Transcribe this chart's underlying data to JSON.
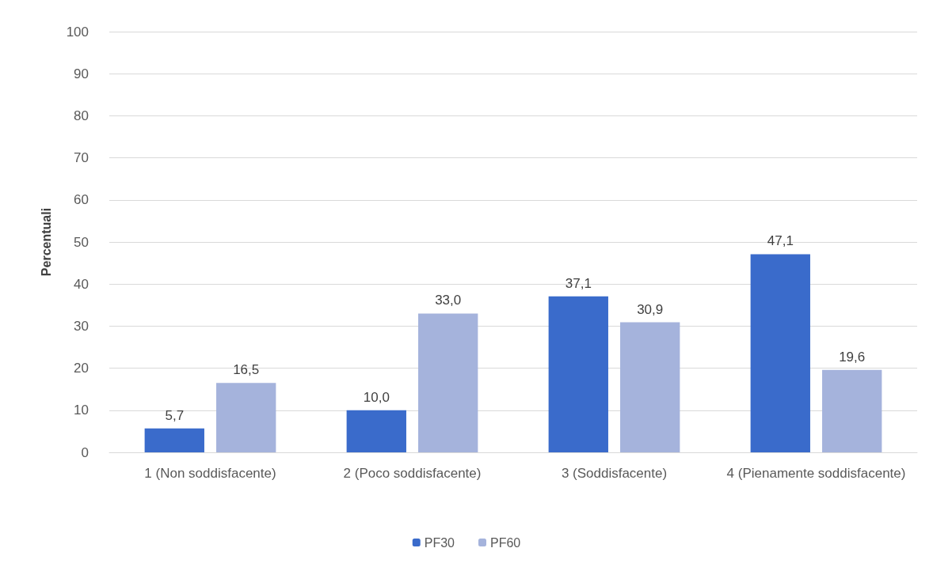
{
  "chart_data": {
    "type": "bar",
    "ylabel": "Percentuali",
    "categories": [
      "1 (Non soddisfacente)",
      "2 (Poco soddisfacente)",
      "3 (Soddisfacente)",
      "4 (Pienamente soddisfacente)"
    ],
    "series": [
      {
        "name": "PF30",
        "color": "#3a6bcb",
        "values": [
          5.7,
          10.0,
          37.1,
          47.1
        ],
        "value_labels": [
          "5,7",
          "10,0",
          "37,1",
          "47,1"
        ]
      },
      {
        "name": "PF60",
        "color": "#a5b3dc",
        "values": [
          16.5,
          33.0,
          30.9,
          19.6
        ],
        "value_labels": [
          "16,5",
          "33,0",
          "30,9",
          "19,6"
        ]
      }
    ],
    "ylim": [
      0,
      100
    ],
    "yticks": [
      0,
      10,
      20,
      30,
      40,
      50,
      60,
      70,
      80,
      90,
      100
    ],
    "grid": "y",
    "legend": "bottom"
  }
}
